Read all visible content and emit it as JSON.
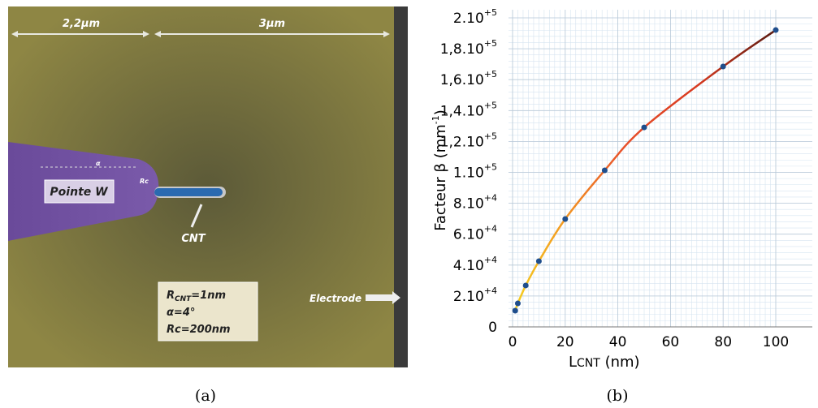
{
  "diagram": {
    "dim_left": "2,2μm",
    "dim_right": "3μm",
    "tip_label": "Pointe W",
    "angle_mark": "α",
    "radius_mark": "Rc",
    "cnt_label": "CNT",
    "params": [
      [
        "R",
        "CNT",
        "=1nm"
      ],
      [
        "α=4°"
      ],
      [
        "Rc=200nm"
      ]
    ],
    "electrode_label": "Electrode",
    "caption": "(a)"
  },
  "chart_data": {
    "type": "line",
    "caption": "(b)",
    "xlabel": [
      "L",
      "CNT",
      " (nm)"
    ],
    "ylabel": [
      "Facteur  β (mm",
      "-1",
      ")"
    ],
    "x": [
      1,
      2,
      5,
      10,
      20,
      35,
      50,
      80,
      100
    ],
    "series": [
      {
        "name": "β",
        "color": [
          "#f5d020",
          "#f39a22",
          "#e8502a",
          "#d83a20",
          "#5a1a10"
        ],
        "marker_color": "#1f4e8c",
        "values": [
          10500,
          15200,
          26800,
          42500,
          69800,
          101300,
          129100,
          168500,
          192100
        ]
      }
    ],
    "xlim": [
      0,
      100
    ],
    "xticks": [
      0,
      20,
      40,
      60,
      80,
      100
    ],
    "ylim": [
      0,
      200000
    ],
    "yticks": [
      0,
      {
        "value": 20000,
        "label": "2.10",
        "exponent": "+4"
      },
      {
        "value": 40000,
        "label": "4.10",
        "exponent": "+4"
      },
      {
        "value": 60000,
        "label": "6.10",
        "exponent": "+4"
      },
      {
        "value": 80000,
        "label": "8.10",
        "exponent": "+4"
      },
      {
        "value": 100000,
        "label": "1.10",
        "exponent": "+5"
      },
      {
        "value": 120000,
        "label": "1,2.10",
        "exponent": "+5"
      },
      {
        "value": 140000,
        "label": "1,4.10",
        "exponent": "+5"
      },
      {
        "value": 160000,
        "label": "1,6.10",
        "exponent": "+5"
      },
      {
        "value": 180000,
        "label": "1,8.10",
        "exponent": "+5"
      },
      {
        "value": 200000,
        "label": "2.10",
        "exponent": "+5"
      }
    ],
    "grid": true
  }
}
